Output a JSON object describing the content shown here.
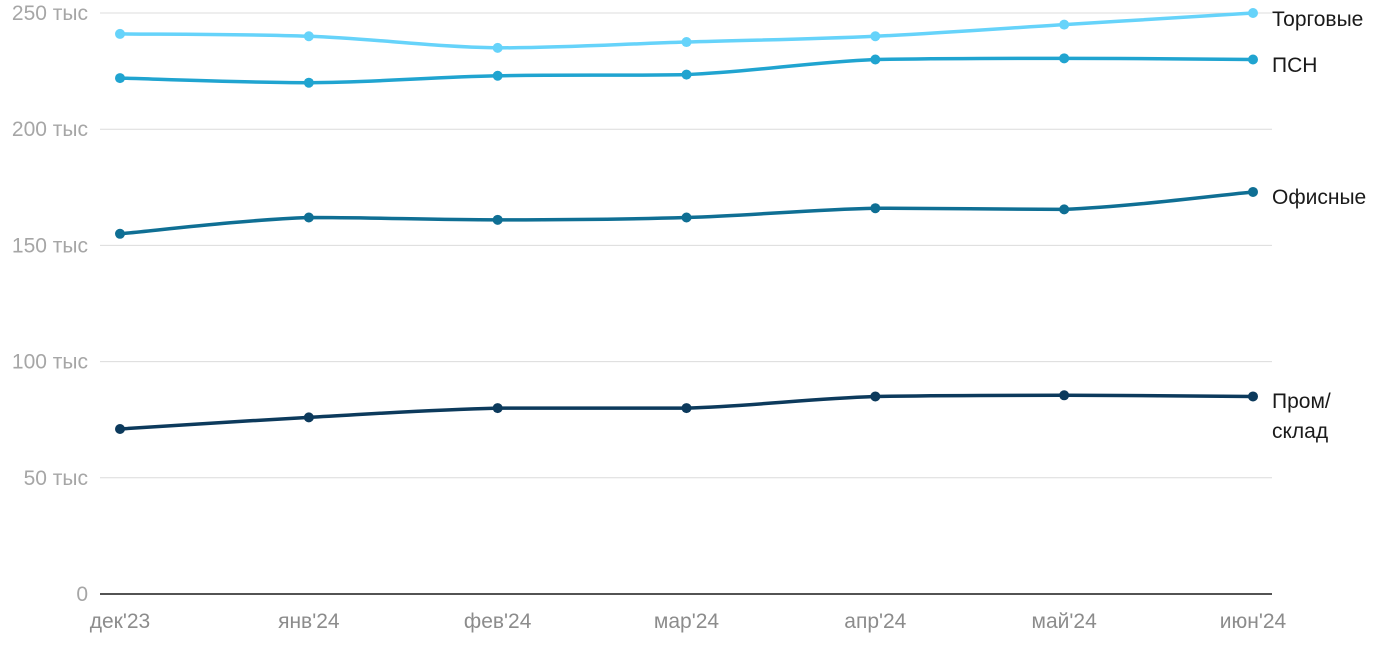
{
  "chart_data": {
    "type": "line",
    "title": "",
    "xlabel": "",
    "ylabel": "",
    "x": [
      "дек'23",
      "янв'24",
      "фев'24",
      "мар'24",
      "апр'24",
      "май'24",
      "июн'24"
    ],
    "y_ticks": [
      {
        "value": 0,
        "label": "0"
      },
      {
        "value": 50000,
        "label": "50 тыс"
      },
      {
        "value": 100000,
        "label": "100 тыс"
      },
      {
        "value": 150000,
        "label": "150 тыс"
      },
      {
        "value": 200000,
        "label": "200 тыс"
      },
      {
        "value": 250000,
        "label": "250 тыс"
      }
    ],
    "ylim": [
      0,
      250000
    ],
    "grid": true,
    "legend": "direct labels at right end of lines",
    "series": [
      {
        "name": "Торговые",
        "label_lines": [
          "Торговые"
        ],
        "color": "#66d3fa",
        "values": [
          241000,
          240000,
          235000,
          237500,
          240000,
          245000,
          250000
        ]
      },
      {
        "name": "ПСН",
        "label_lines": [
          "ПСН"
        ],
        "color": "#20a4d0",
        "values": [
          222000,
          220000,
          223000,
          223500,
          230000,
          230500,
          230000
        ]
      },
      {
        "name": "Офисные",
        "label_lines": [
          "Офисные"
        ],
        "color": "#0f6f94",
        "values": [
          155000,
          162000,
          161000,
          162000,
          166000,
          165500,
          173000
        ]
      },
      {
        "name": "Пром/склад",
        "label_lines": [
          "Пром/",
          "склад"
        ],
        "color": "#0c3a5c",
        "values": [
          71000,
          76000,
          80000,
          80000,
          85000,
          85500,
          85000
        ]
      }
    ]
  }
}
